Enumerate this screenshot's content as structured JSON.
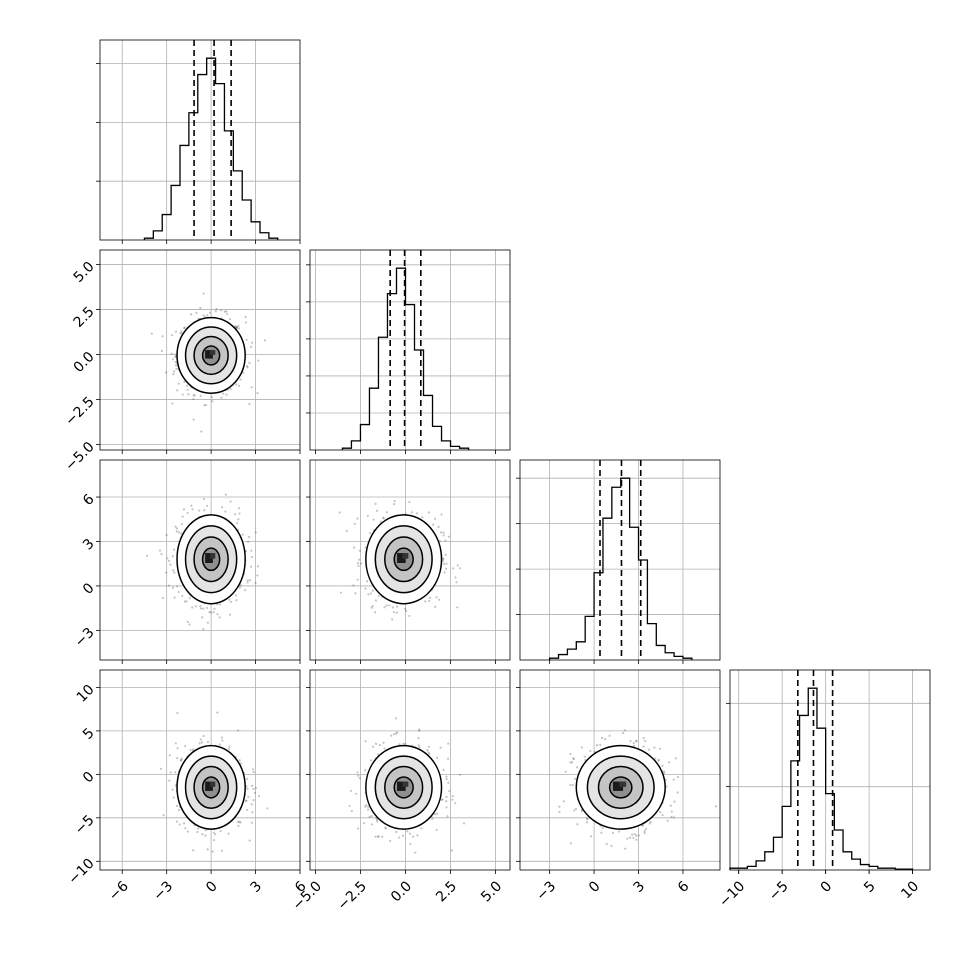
{
  "chart_data": {
    "type": "corner",
    "description_params": 4,
    "grid": true,
    "series": [
      {
        "name": "",
        "axis_ticks": [
          "-6",
          "-3",
          "0",
          "3",
          "6"
        ],
        "tick_values": [
          -6,
          -3,
          0,
          3,
          6
        ],
        "range": [
          -7.5,
          6.0
        ],
        "histogram": {
          "bin_edges": [
            -4.5,
            -3.9,
            -3.3,
            -2.7,
            -2.1,
            -1.5,
            -0.9,
            -0.3,
            0.3,
            0.9,
            1.5,
            2.1,
            2.7,
            3.3,
            3.9,
            4.5
          ],
          "counts": [
            0.01,
            0.05,
            0.14,
            0.3,
            0.52,
            0.7,
            0.91,
            1.0,
            0.86,
            0.6,
            0.38,
            0.22,
            0.1,
            0.04,
            0.01
          ],
          "quantiles": [
            -1.15,
            0.2,
            1.35
          ]
        },
        "hist_yticks": 3
      },
      {
        "name": "",
        "axis_ticks": [
          "-5.0",
          "-2.5",
          "0.0",
          "2.5",
          "5.0"
        ],
        "tick_values": [
          -5.0,
          -2.5,
          0.0,
          2.5,
          5.0
        ],
        "range": [
          -5.3,
          5.8
        ],
        "histogram": {
          "bin_edges": [
            -3.5,
            -3.0,
            -2.5,
            -2.0,
            -1.5,
            -1.0,
            -0.5,
            0.0,
            0.5,
            1.0,
            1.5,
            2.0,
            2.5,
            3.0,
            3.5
          ],
          "counts": [
            0.01,
            0.05,
            0.14,
            0.34,
            0.62,
            0.86,
            1.0,
            0.8,
            0.55,
            0.3,
            0.13,
            0.05,
            0.02,
            0.01
          ],
          "quantiles": [
            -0.85,
            -0.05,
            0.85
          ]
        },
        "hist_yticks": 5
      },
      {
        "name": "",
        "axis_ticks": [
          "-3",
          "0",
          "3",
          "6"
        ],
        "tick_values": [
          -3,
          0,
          3,
          6
        ],
        "range": [
          -5.0,
          8.5
        ],
        "histogram": {
          "bin_edges": [
            -3.0,
            -2.4,
            -1.8,
            -1.2,
            -0.6,
            0.0,
            0.6,
            1.2,
            1.8,
            2.4,
            3.0,
            3.6,
            4.2,
            4.8,
            5.4,
            6.0,
            6.6
          ],
          "counts": [
            0.01,
            0.03,
            0.06,
            0.1,
            0.24,
            0.48,
            0.78,
            0.95,
            1.0,
            0.73,
            0.55,
            0.2,
            0.08,
            0.04,
            0.02,
            0.01
          ],
          "quantiles": [
            0.4,
            1.85,
            3.15
          ]
        },
        "hist_yticks": 4
      },
      {
        "name": "",
        "axis_ticks": [
          "-10",
          "-5",
          "0",
          "5",
          "10"
        ],
        "tick_values": [
          -10,
          -5,
          0,
          5,
          10
        ],
        "range": [
          -11.0,
          12.0
        ],
        "histogram": {
          "bin_edges": [
            -11,
            -10,
            -9,
            -8,
            -7,
            -6,
            -5,
            -4,
            -3,
            -2,
            -1,
            0,
            1,
            2,
            3,
            4,
            5,
            6,
            7,
            8,
            9,
            10
          ],
          "counts": [
            0.01,
            0.01,
            0.02,
            0.05,
            0.1,
            0.18,
            0.35,
            0.6,
            0.85,
            1.0,
            0.78,
            0.42,
            0.22,
            0.1,
            0.06,
            0.03,
            0.02,
            0.01,
            0.01,
            0.005,
            0.005
          ],
          "quantiles": [
            -3.2,
            -1.4,
            0.8
          ]
        },
        "hist_yticks": 2
      }
    ],
    "joint": [
      {
        "row": 1,
        "col": 0,
        "center": [
          0.0,
          -0.05
        ],
        "sigma": [
          1.15,
          1.05
        ]
      },
      {
        "row": 2,
        "col": 0,
        "center": [
          0.0,
          1.8
        ],
        "sigma": [
          1.15,
          1.5
        ]
      },
      {
        "row": 2,
        "col": 1,
        "center": [
          -0.1,
          1.8
        ],
        "sigma": [
          1.05,
          1.5
        ]
      },
      {
        "row": 3,
        "col": 0,
        "center": [
          0.0,
          -1.5
        ],
        "sigma": [
          1.15,
          2.4
        ]
      },
      {
        "row": 3,
        "col": 1,
        "center": [
          -0.1,
          -1.5
        ],
        "sigma": [
          1.05,
          2.4
        ]
      },
      {
        "row": 3,
        "col": 2,
        "center": [
          1.8,
          -1.5
        ],
        "sigma": [
          1.5,
          2.4
        ]
      }
    ],
    "contour_levels_sigma": [
      0.5,
      1.0,
      1.5,
      2.0
    ],
    "quantile_style": "dashed"
  }
}
